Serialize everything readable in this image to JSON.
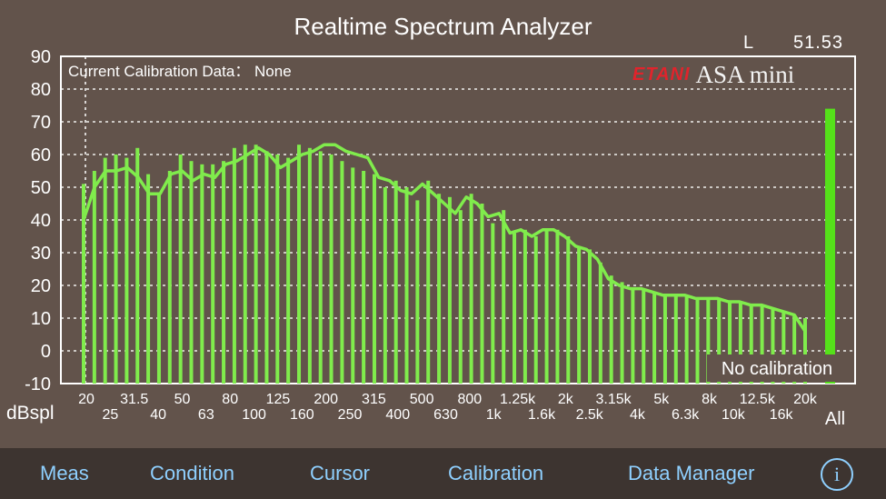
{
  "app": {
    "title": "Realtime Spectrum Analyzer",
    "channel": "L",
    "level": "51.53",
    "calibration_text": "Current Calibration Data： None",
    "badge": "No calibration",
    "brand_logo": "ETANI",
    "brand_name": "ASA mini"
  },
  "tabs": [
    "Meas",
    "Condition",
    "Cursor",
    "Calibration",
    "Data Manager"
  ],
  "info_icon_glyph": "i",
  "colors": {
    "bg": "#62534b",
    "bars": "#80ec4c",
    "all_bar": "#55e01a",
    "tab_text": "#8fd0ff",
    "brand_red": "#e0242c"
  },
  "chart_data": {
    "type": "bar",
    "ylabel": "dBspl",
    "ylim": [
      -10,
      90
    ],
    "yticks": [
      90,
      80,
      70,
      60,
      50,
      40,
      30,
      20,
      10,
      0,
      -10
    ],
    "grid": true,
    "categories": [
      "20",
      "25",
      "31.5",
      "40",
      "50",
      "63",
      "80",
      "100",
      "125",
      "160",
      "200",
      "250",
      "315",
      "400",
      "500",
      "630",
      "800",
      "1k",
      "1.25k",
      "1.6k",
      "2k",
      "2.5k",
      "3.15k",
      "4k",
      "5k",
      "6.3k",
      "8k",
      "10k",
      "12.5k",
      "16k",
      "20k"
    ],
    "band_values": [
      51,
      55,
      59,
      60,
      59,
      62,
      54,
      48,
      55,
      60,
      58,
      57,
      57,
      58,
      62,
      63,
      63,
      61,
      60,
      59,
      63,
      62,
      61,
      60,
      58,
      56,
      55,
      54,
      50,
      52,
      50,
      46,
      52,
      48,
      47,
      43,
      48,
      45,
      39,
      43,
      36,
      37,
      35,
      37,
      37,
      35,
      32,
      31,
      27,
      23,
      21,
      19,
      19,
      18,
      17,
      17,
      17,
      16,
      16,
      16,
      15,
      15,
      14,
      14,
      13,
      12,
      11,
      10
    ],
    "curve_values": [
      40,
      50,
      55,
      55,
      56,
      53,
      48,
      48,
      54,
      55,
      52,
      54,
      53,
      57,
      58,
      60,
      62,
      60,
      56,
      58,
      60,
      61,
      63,
      63,
      61,
      60,
      59,
      53,
      52,
      49,
      48,
      51,
      48,
      45,
      42,
      47,
      45,
      41,
      42,
      36,
      37,
      35,
      37,
      37,
      35,
      32,
      31,
      28,
      22,
      20,
      19,
      19,
      18,
      17,
      17,
      17,
      16,
      16,
      16,
      15,
      15,
      14,
      14,
      13,
      12,
      11,
      6
    ],
    "all_value": 74
  }
}
